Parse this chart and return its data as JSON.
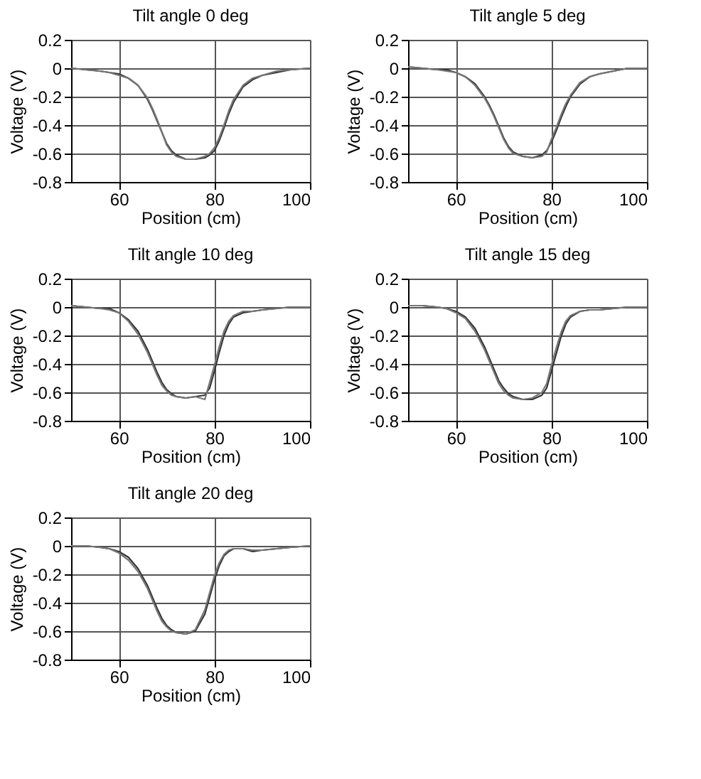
{
  "chart_data": [
    {
      "type": "line",
      "title": "Tilt angle 0 deg",
      "xlabel": "Position (cm)",
      "ylabel": "Voltage (V)",
      "xlim": [
        50,
        100
      ],
      "xticks": [
        60,
        80,
        100
      ],
      "ylim": [
        -0.8,
        0.2
      ],
      "yticks": [
        -0.8,
        -0.6,
        -0.4,
        -0.2,
        0,
        0.2
      ],
      "grid": true,
      "legend": false,
      "line_style": "solid",
      "x": [
        50,
        53,
        56,
        58,
        60,
        62,
        64,
        66,
        67,
        68,
        69,
        70,
        71,
        72,
        74,
        76,
        78,
        79,
        80,
        81,
        82,
        83,
        84,
        86,
        88,
        90,
        93,
        96,
        100
      ],
      "series": [
        {
          "color": "#333333",
          "values": [
            0,
            -0.01,
            -0.02,
            -0.03,
            -0.04,
            -0.07,
            -0.12,
            -0.22,
            -0.29,
            -0.37,
            -0.45,
            -0.53,
            -0.58,
            -0.61,
            -0.64,
            -0.64,
            -0.63,
            -0.61,
            -0.58,
            -0.51,
            -0.42,
            -0.32,
            -0.24,
            -0.13,
            -0.08,
            -0.05,
            -0.03,
            -0.01,
            0
          ]
        },
        {
          "color": "#777777",
          "values": [
            0,
            -0.01,
            -0.02,
            -0.03,
            -0.05,
            -0.07,
            -0.12,
            -0.21,
            -0.28,
            -0.36,
            -0.45,
            -0.54,
            -0.59,
            -0.62,
            -0.64,
            -0.64,
            -0.62,
            -0.6,
            -0.56,
            -0.49,
            -0.4,
            -0.3,
            -0.22,
            -0.12,
            -0.07,
            -0.05,
            -0.02,
            -0.01,
            0
          ]
        }
      ]
    },
    {
      "type": "line",
      "title": "Tilt angle 5 deg",
      "xlabel": "Position (cm)",
      "ylabel": "Voltage (V)",
      "xlim": [
        50,
        100
      ],
      "xticks": [
        60,
        80,
        100
      ],
      "ylim": [
        -0.8,
        0.2
      ],
      "yticks": [
        -0.8,
        -0.6,
        -0.4,
        -0.2,
        0,
        0.2
      ],
      "grid": true,
      "legend": false,
      "line_style": "solid",
      "x": [
        50,
        53,
        56,
        58,
        60,
        62,
        64,
        66,
        67,
        68,
        69,
        70,
        71,
        72,
        74,
        76,
        78,
        79,
        80,
        81,
        82,
        83,
        84,
        86,
        88,
        90,
        93,
        96,
        100
      ],
      "series": [
        {
          "color": "#333333",
          "values": [
            0.01,
            0,
            -0.01,
            -0.01,
            -0.03,
            -0.06,
            -0.11,
            -0.2,
            -0.26,
            -0.33,
            -0.41,
            -0.49,
            -0.55,
            -0.59,
            -0.62,
            -0.63,
            -0.61,
            -0.58,
            -0.52,
            -0.44,
            -0.35,
            -0.27,
            -0.2,
            -0.11,
            -0.06,
            -0.04,
            -0.02,
            0,
            0
          ]
        },
        {
          "color": "#777777",
          "values": [
            0.01,
            0,
            -0.01,
            -0.02,
            -0.03,
            -0.06,
            -0.12,
            -0.21,
            -0.27,
            -0.34,
            -0.42,
            -0.5,
            -0.56,
            -0.6,
            -0.62,
            -0.63,
            -0.62,
            -0.59,
            -0.5,
            -0.42,
            -0.33,
            -0.25,
            -0.19,
            -0.1,
            -0.06,
            -0.04,
            -0.02,
            0,
            0
          ]
        }
      ]
    },
    {
      "type": "line",
      "title": "Tilt angle 10 deg",
      "xlabel": "Position (cm)",
      "ylabel": "Voltage (V)",
      "xlim": [
        50,
        100
      ],
      "xticks": [
        60,
        80,
        100
      ],
      "ylim": [
        -0.8,
        0.2
      ],
      "yticks": [
        -0.8,
        -0.6,
        -0.4,
        -0.2,
        0,
        0.2
      ],
      "grid": true,
      "legend": false,
      "line_style": "solid",
      "x": [
        50,
        53,
        56,
        58,
        60,
        62,
        64,
        66,
        67,
        68,
        69,
        70,
        71,
        72,
        74,
        76,
        78,
        79,
        80,
        81,
        82,
        83,
        84,
        86,
        88,
        90,
        93,
        96,
        100
      ],
      "series": [
        {
          "color": "#333333",
          "values": [
            0.01,
            0,
            -0.01,
            -0.01,
            -0.04,
            -0.09,
            -0.17,
            -0.3,
            -0.38,
            -0.46,
            -0.53,
            -0.58,
            -0.61,
            -0.63,
            -0.64,
            -0.63,
            -0.62,
            -0.57,
            -0.45,
            -0.32,
            -0.2,
            -0.12,
            -0.07,
            -0.04,
            -0.03,
            -0.02,
            -0.01,
            0,
            0
          ]
        },
        {
          "color": "#777777",
          "values": [
            0.01,
            0,
            -0.01,
            -0.02,
            -0.04,
            -0.1,
            -0.19,
            -0.32,
            -0.4,
            -0.48,
            -0.55,
            -0.59,
            -0.62,
            -0.63,
            -0.64,
            -0.63,
            -0.65,
            -0.53,
            -0.41,
            -0.28,
            -0.17,
            -0.1,
            -0.06,
            -0.03,
            -0.03,
            -0.02,
            -0.01,
            0,
            0
          ]
        }
      ]
    },
    {
      "type": "line",
      "title": "Tilt angle 15 deg",
      "xlabel": "Position (cm)",
      "ylabel": "Voltage (V)",
      "xlim": [
        50,
        100
      ],
      "xticks": [
        60,
        80,
        100
      ],
      "ylim": [
        -0.8,
        0.2
      ],
      "yticks": [
        -0.8,
        -0.6,
        -0.4,
        -0.2,
        0,
        0.2
      ],
      "grid": true,
      "legend": false,
      "line_style": "solid",
      "x": [
        50,
        53,
        56,
        58,
        60,
        62,
        64,
        66,
        67,
        68,
        69,
        70,
        71,
        72,
        74,
        76,
        78,
        79,
        80,
        81,
        82,
        83,
        84,
        86,
        88,
        90,
        93,
        96,
        100
      ],
      "series": [
        {
          "color": "#333333",
          "values": [
            0.01,
            0.01,
            0,
            -0.01,
            -0.03,
            -0.07,
            -0.15,
            -0.28,
            -0.36,
            -0.44,
            -0.52,
            -0.57,
            -0.61,
            -0.63,
            -0.65,
            -0.65,
            -0.62,
            -0.57,
            -0.45,
            -0.33,
            -0.21,
            -0.12,
            -0.07,
            -0.03,
            -0.02,
            -0.02,
            -0.01,
            0,
            0
          ]
        },
        {
          "color": "#777777",
          "values": [
            0.01,
            0.01,
            0,
            -0.01,
            -0.04,
            -0.08,
            -0.17,
            -0.3,
            -0.38,
            -0.46,
            -0.54,
            -0.59,
            -0.62,
            -0.64,
            -0.65,
            -0.64,
            -0.6,
            -0.54,
            -0.41,
            -0.29,
            -0.18,
            -0.1,
            -0.06,
            -0.03,
            -0.02,
            -0.02,
            -0.01,
            0,
            0
          ]
        }
      ]
    },
    {
      "type": "line",
      "title": "Tilt angle 20 deg",
      "xlabel": "Position (cm)",
      "ylabel": "Voltage (V)",
      "xlim": [
        50,
        100
      ],
      "xticks": [
        60,
        80,
        100
      ],
      "ylim": [
        -0.8,
        0.2
      ],
      "yticks": [
        -0.8,
        -0.6,
        -0.4,
        -0.2,
        0,
        0.2
      ],
      "grid": true,
      "legend": false,
      "line_style": "solid",
      "x": [
        50,
        53,
        56,
        58,
        60,
        62,
        64,
        66,
        67,
        68,
        69,
        70,
        71,
        72,
        74,
        76,
        78,
        79,
        80,
        81,
        82,
        83,
        84,
        86,
        88,
        90,
        93,
        96,
        100
      ],
      "series": [
        {
          "color": "#333333",
          "values": [
            0,
            0,
            -0.01,
            -0.02,
            -0.04,
            -0.08,
            -0.16,
            -0.28,
            -0.36,
            -0.44,
            -0.51,
            -0.56,
            -0.59,
            -0.61,
            -0.62,
            -0.6,
            -0.48,
            -0.36,
            -0.24,
            -0.14,
            -0.07,
            -0.04,
            -0.02,
            -0.02,
            -0.04,
            -0.03,
            -0.02,
            -0.01,
            0
          ]
        },
        {
          "color": "#777777",
          "values": [
            0,
            0,
            -0.01,
            -0.02,
            -0.05,
            -0.1,
            -0.18,
            -0.3,
            -0.38,
            -0.46,
            -0.53,
            -0.57,
            -0.6,
            -0.61,
            -0.62,
            -0.59,
            -0.45,
            -0.33,
            -0.21,
            -0.12,
            -0.06,
            -0.03,
            -0.02,
            -0.02,
            -0.03,
            -0.03,
            -0.02,
            -0.01,
            0
          ]
        }
      ]
    }
  ]
}
